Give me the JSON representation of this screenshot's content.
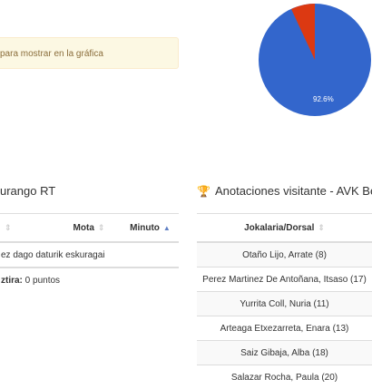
{
  "alert": {
    "text": "para mostrar en la gráfica"
  },
  "pie": {
    "label": "92.6%",
    "values": [
      92.6,
      7.4
    ],
    "colors": [
      "#3366cc",
      "#dc3912"
    ]
  },
  "left_panel": {
    "title": "urango RT",
    "headers": [
      "",
      "Mota",
      "Minuto"
    ],
    "empty_text": "ez dago daturik eskuragai",
    "footer_label": "ztira:",
    "footer_value": " 0 puntos"
  },
  "right_panel": {
    "title": "Anotaciones visitante - AVK Bera",
    "header": "Jokalaria/Dorsal",
    "rows": [
      "Otaño Lijo, Arrate (8)",
      "Perez Martinez De Antoñana, Itsaso (17)",
      "Yurrita Coll, Nuria (11)",
      "Arteaga Etxezarreta, Enara (13)",
      "Saiz Gibaja, Alba (18)",
      "Salazar Rocha, Paula (20)"
    ]
  }
}
